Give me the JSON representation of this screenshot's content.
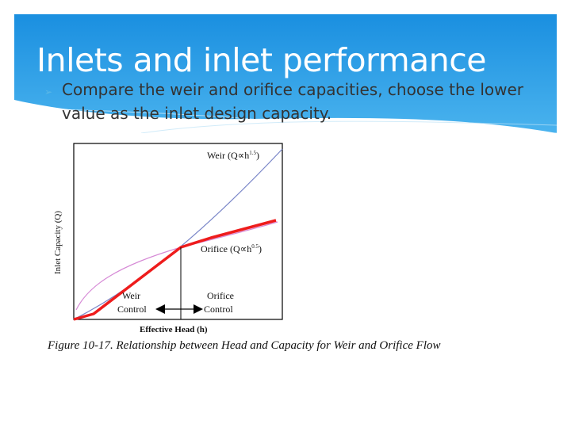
{
  "slide": {
    "title": "Inlets and inlet performance",
    "bullet": "Compare the weir and orifice capacities, choose the lower value as the inlet design capacity."
  },
  "figure": {
    "y_axis_label": "Inlet Capacity (Q)",
    "x_axis_label": "Effective Head (h)",
    "weir_label": "Weir (Q∝h",
    "weir_exp": "1.5",
    "orifice_label": "Orifice (Q∝h",
    "orifice_exp": "0.5",
    "weir_control": [
      "Weir",
      "Control"
    ],
    "orifice_control": [
      "Orifice",
      "Control"
    ],
    "caption": "Figure 10-17.  Relationship between Head and Capacity for Weir and Orifice Flow",
    "colors": {
      "weir_curve": "#7a86c8",
      "orifice_curve": "#d68ad6",
      "design_curve": "#ee1c1c"
    }
  }
}
